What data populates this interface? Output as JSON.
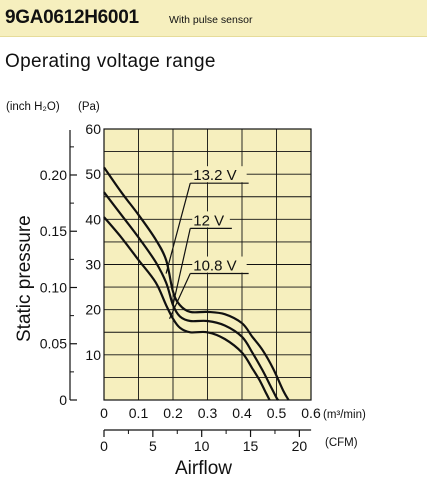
{
  "header": {
    "model": "9GA0612H6001",
    "subtitle": "With pulse sensor",
    "background_color": "#f6efbe"
  },
  "section_title": "Operating voltage range",
  "chart_data": {
    "type": "line",
    "plot_background": "#f6efbe",
    "grid": true,
    "ylabel": "Static pressure",
    "xlabel": "Airflow",
    "y_units": {
      "inch": "(inch H₂O)",
      "pa": "(Pa)"
    },
    "x_units": {
      "m3": "(m³/min)",
      "cfm": "(CFM)"
    },
    "y_pa_ticks": [
      "60",
      "50",
      "40",
      "30",
      "20",
      "10"
    ],
    "y_pa_tick_values": [
      60,
      50,
      40,
      30,
      20,
      10
    ],
    "y_inch_ticks": [
      "0.20",
      "0.15",
      "0.10",
      "0.05",
      "0"
    ],
    "y_inch_tick_values": [
      0.2,
      0.15,
      0.1,
      0.05,
      0
    ],
    "x_m3_ticks": [
      "0",
      "0.1",
      "0.2",
      "0.3",
      "0.4",
      "0.5",
      "0.6"
    ],
    "x_m3_tick_values": [
      0,
      0.1,
      0.2,
      0.3,
      0.4,
      0.5,
      0.6
    ],
    "x_cfm_ticks": [
      "0",
      "5",
      "10",
      "15",
      "20"
    ],
    "x_cfm_tick_values": [
      0,
      5,
      10,
      15,
      20
    ],
    "xlim": [
      0,
      0.6
    ],
    "ylim": [
      0,
      60
    ],
    "series": [
      {
        "name": "13.2 V",
        "x": [
          0,
          0.05,
          0.1,
          0.15,
          0.18,
          0.2,
          0.22,
          0.25,
          0.3,
          0.35,
          0.4,
          0.43,
          0.46,
          0.49,
          0.52,
          0.535
        ],
        "y": [
          51.5,
          46,
          41,
          35.5,
          31,
          24,
          21,
          19.5,
          19.5,
          19,
          17,
          14,
          11,
          7,
          2,
          0
        ]
      },
      {
        "name": "12 V",
        "x": [
          0,
          0.05,
          0.1,
          0.15,
          0.18,
          0.2,
          0.22,
          0.25,
          0.3,
          0.35,
          0.4,
          0.43,
          0.46,
          0.48,
          0.5,
          0.505
        ],
        "y": [
          46,
          41,
          36,
          30.5,
          26,
          21,
          18.5,
          17.5,
          17.5,
          16.5,
          14,
          10.5,
          6.5,
          3.5,
          0.5,
          0
        ]
      },
      {
        "name": "10.8 V",
        "x": [
          0,
          0.05,
          0.1,
          0.15,
          0.18,
          0.2,
          0.22,
          0.25,
          0.3,
          0.35,
          0.4,
          0.43,
          0.45,
          0.47,
          0.48
        ],
        "y": [
          40.5,
          36,
          31,
          26,
          21,
          18,
          16,
          15,
          15,
          13.5,
          10.5,
          7,
          4.5,
          1.5,
          0
        ]
      }
    ],
    "label_lines": [
      {
        "label": "13.2 V",
        "from": [
          0.18,
          28
        ],
        "to": [
          0.25,
          48
        ]
      },
      {
        "label": "12 V",
        "from": [
          0.2,
          21
        ],
        "to": [
          0.25,
          38
        ]
      },
      {
        "label": "10.8 V",
        "from": [
          0.19,
          18
        ],
        "to": [
          0.25,
          28
        ]
      }
    ]
  }
}
